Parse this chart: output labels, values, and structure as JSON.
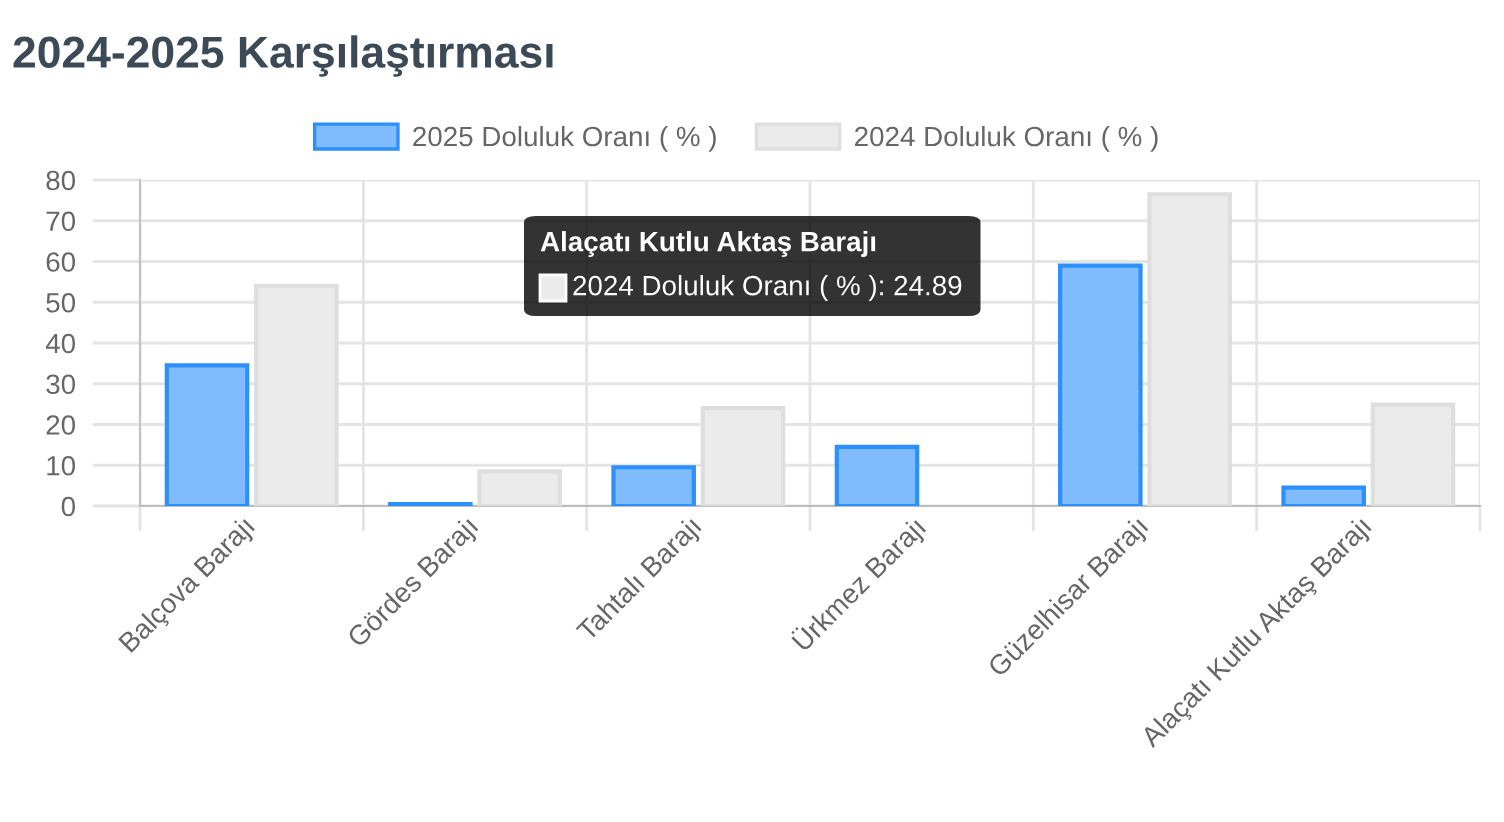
{
  "chart_data": {
    "type": "bar",
    "title": "2024-2025 Karşılaştırması",
    "categories": [
      "Balçova Barajı",
      "Gördes Barajı",
      "Tahtalı Barajı",
      "Ürkmez Barajı",
      "Güzelhisar Barajı",
      "Alaçatı Kutlu Aktaş Barajı"
    ],
    "series": [
      {
        "name": "2025 Doluluk Oranı ( % )",
        "color": "#80bcfd",
        "values": [
          34.5,
          0.5,
          9.5,
          14.5,
          59,
          4.5
        ]
      },
      {
        "name": "2024 Doluluk Oranı ( % )",
        "color": "#ebebeb",
        "values": [
          54,
          8.5,
          24,
          null,
          76.5,
          24.89
        ]
      }
    ],
    "ylim": [
      0,
      80
    ],
    "yticks": [
      0,
      10,
      20,
      30,
      40,
      50,
      60,
      70,
      80
    ],
    "grid": true,
    "legend": "top",
    "annotations": [
      "Alaçatı Kutlu Aktaş Barajı\n2024 Doluluk Oranı ( % ): 24.89"
    ]
  }
}
